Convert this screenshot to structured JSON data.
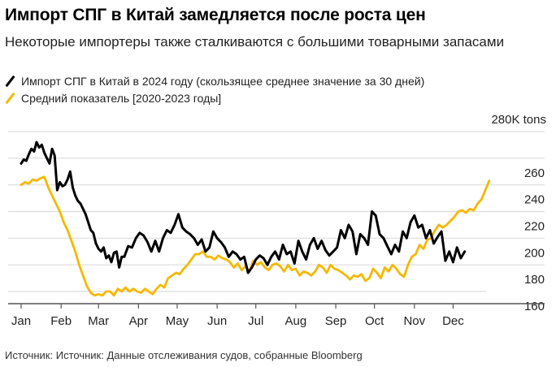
{
  "header": {
    "title": "Импорт СПГ в Китай замедляется после роста цен",
    "subtitle": "Некоторые импортеры также сталкиваются с большими товарными запасами"
  },
  "legend": [
    {
      "label": "Импорт СПГ в Китай в 2024 году (скользящее среднее значение за 30 дней)",
      "color": "#000000"
    },
    {
      "label": "Средний показатель [2020-2023 годы]",
      "color": "#f5b800"
    }
  ],
  "footer": {
    "source": "Источник: Источник: Данные отслеживания судов, собранные Bloomberg"
  },
  "chart_data": {
    "type": "line",
    "title": "Импорт СПГ в Китай замедляется после роста цен",
    "subtitle": "Некоторые импортеры также сталкиваются с большими товарными запасами",
    "xlabel": "",
    "ylabel": "K tons",
    "unit_label": "280K tons",
    "ylim": [
      150,
      280
    ],
    "yticks": [
      280,
      260,
      240,
      220,
      200,
      180,
      160
    ],
    "ytick_labels": [
      "280K tons",
      "260",
      "240",
      "220",
      "200",
      "180",
      "160"
    ],
    "xlim": [
      1,
      366
    ],
    "xticks": [
      1,
      32,
      61,
      92,
      122,
      153,
      183,
      214,
      245,
      275,
      306,
      336
    ],
    "xtick_labels": [
      "Jan",
      "Feb",
      "Mar",
      "Apr",
      "May",
      "Jun",
      "Jul",
      "Aug",
      "Sep",
      "Oct",
      "Nov",
      "Dec"
    ],
    "grid": true,
    "legend_position": "top-left",
    "series": [
      {
        "name": "Импорт СПГ в Китай в 2024 году (скользящее среднее значение за 30 дней)",
        "color": "#000000",
        "x": [
          1,
          3,
          5,
          7,
          9,
          11,
          13,
          15,
          17,
          19,
          21,
          23,
          25,
          27,
          29,
          31,
          33,
          35,
          37,
          39,
          41,
          43,
          45,
          47,
          49,
          51,
          53,
          55,
          57,
          59,
          61,
          63,
          65,
          67,
          69,
          71,
          73,
          75,
          77,
          79,
          81,
          84,
          87,
          90,
          93,
          96,
          99,
          102,
          105,
          108,
          111,
          114,
          117,
          120,
          123,
          126,
          129,
          132,
          135,
          138,
          141,
          144,
          147,
          150,
          153,
          156,
          159,
          162,
          165,
          168,
          171,
          174,
          177,
          180,
          183,
          186,
          189,
          192,
          195,
          198,
          201,
          204,
          207,
          210,
          213,
          216,
          219,
          222,
          225,
          228,
          231,
          234,
          237,
          240,
          243,
          246,
          249,
          252,
          255,
          258,
          261,
          264,
          267,
          270,
          273,
          276,
          279,
          282,
          285,
          288,
          291,
          294,
          297,
          300,
          303,
          306,
          309,
          312,
          315,
          318,
          321,
          324,
          327,
          330,
          333,
          336,
          339,
          342,
          345
        ],
        "values": [
          256,
          259,
          258,
          263,
          267,
          265,
          272,
          268,
          270,
          264,
          260,
          256,
          267,
          262,
          236,
          242,
          239,
          240,
          244,
          250,
          238,
          232,
          228,
          226,
          222,
          218,
          212,
          206,
          204,
          196,
          192,
          190,
          193,
          185,
          187,
          182,
          189,
          190,
          178,
          186,
          186,
          194,
          193,
          200,
          204,
          202,
          197,
          190,
          198,
          190,
          200,
          206,
          204,
          210,
          218,
          208,
          205,
          203,
          200,
          195,
          199,
          190,
          193,
          205,
          200,
          197,
          193,
          186,
          190,
          188,
          184,
          186,
          174,
          178,
          184,
          187,
          185,
          180,
          186,
          190,
          184,
          195,
          188,
          190,
          181,
          198,
          190,
          184,
          195,
          200,
          192,
          198,
          191,
          187,
          190,
          193,
          206,
          200,
          210,
          205,
          188,
          203,
          200,
          195,
          220,
          217,
          203,
          200,
          194,
          188,
          195,
          190,
          205,
          200,
          212,
          217,
          208,
          210,
          200,
          206,
          196,
          201,
          205,
          183,
          190,
          182,
          193,
          185,
          190
        ]
      },
      {
        "name": "Средний показатель [2020-2023 годы]",
        "color": "#f5b800",
        "x": [
          1,
          4,
          7,
          10,
          13,
          16,
          19,
          22,
          25,
          28,
          31,
          34,
          37,
          40,
          43,
          46,
          49,
          52,
          55,
          58,
          61,
          64,
          67,
          70,
          73,
          76,
          79,
          82,
          85,
          88,
          91,
          94,
          97,
          100,
          103,
          106,
          109,
          112,
          115,
          118,
          121,
          124,
          127,
          130,
          133,
          136,
          139,
          142,
          145,
          148,
          151,
          154,
          157,
          160,
          163,
          166,
          169,
          172,
          175,
          178,
          181,
          184,
          187,
          190,
          193,
          196,
          199,
          202,
          205,
          208,
          211,
          214,
          217,
          220,
          223,
          226,
          229,
          232,
          235,
          238,
          241,
          244,
          247,
          250,
          253,
          256,
          259,
          262,
          265,
          268,
          271,
          274,
          277,
          280,
          283,
          286,
          289,
          292,
          295,
          298,
          301,
          304,
          307,
          310,
          313,
          316,
          319,
          322,
          325,
          328,
          331,
          334,
          337,
          340,
          343,
          346,
          349,
          352,
          355,
          358,
          361,
          364
        ],
        "values": [
          240,
          242,
          241,
          244,
          243,
          245,
          246,
          238,
          232,
          226,
          220,
          212,
          206,
          198,
          190,
          180,
          172,
          164,
          159,
          157,
          158,
          157,
          160,
          160,
          157,
          162,
          160,
          163,
          160,
          162,
          160,
          159,
          162,
          160,
          158,
          162,
          165,
          163,
          170,
          172,
          174,
          173,
          177,
          180,
          184,
          188,
          188,
          190,
          186,
          186,
          184,
          187,
          185,
          184,
          182,
          178,
          181,
          176,
          179,
          175,
          183,
          180,
          182,
          178,
          176,
          180,
          181,
          179,
          175,
          180,
          176,
          177,
          172,
          175,
          174,
          172,
          175,
          180,
          178,
          174,
          180,
          177,
          176,
          174,
          172,
          169,
          172,
          171,
          173,
          168,
          170,
          177,
          174,
          170,
          178,
          175,
          180,
          177,
          173,
          171,
          180,
          186,
          188,
          195,
          192,
          199,
          200,
          206,
          210,
          208,
          210,
          213,
          216,
          220,
          221,
          219,
          222,
          221,
          226,
          229,
          236,
          243
        ]
      }
    ]
  }
}
